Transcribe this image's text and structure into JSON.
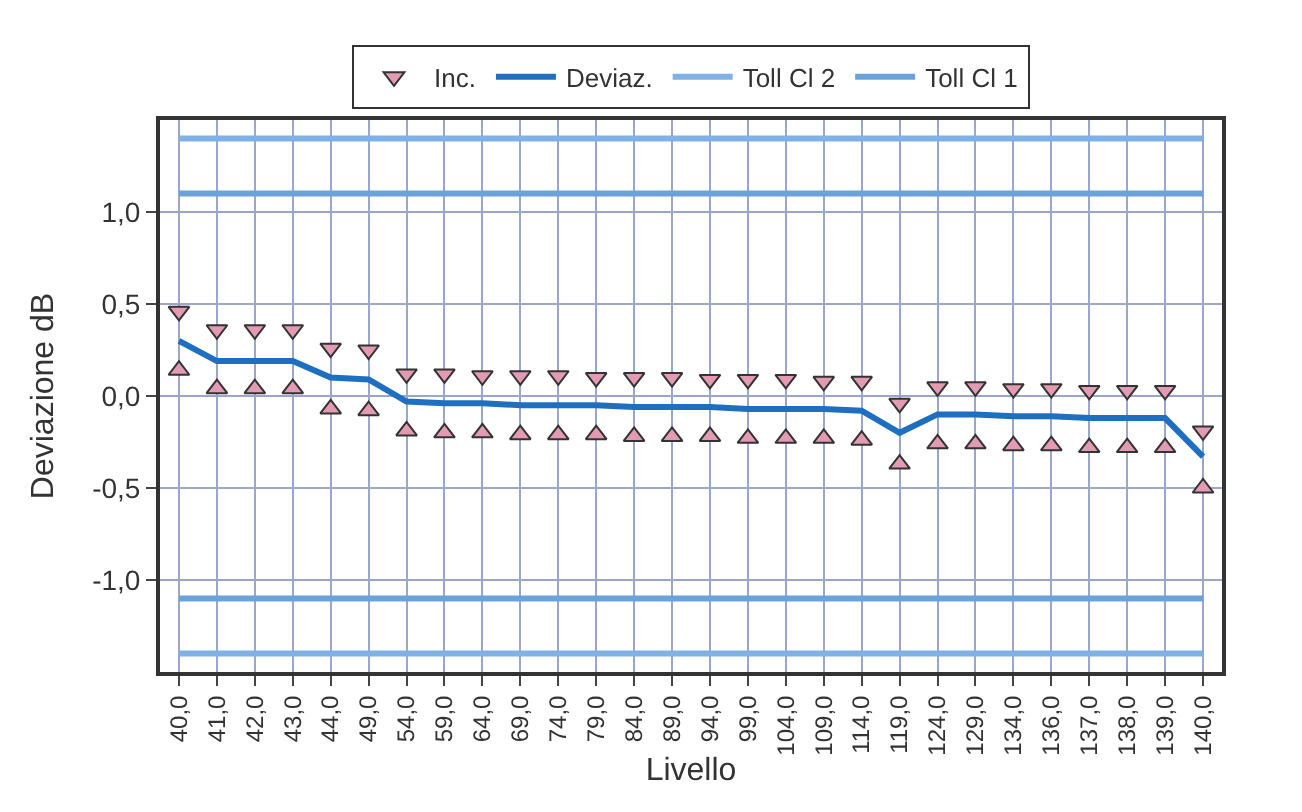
{
  "chart_data": {
    "type": "line",
    "xlabel": "Livello",
    "ylabel": "Deviazione dB",
    "categories": [
      "40,0",
      "41,0",
      "42,0",
      "43,0",
      "44,0",
      "49,0",
      "54,0",
      "59,0",
      "64,0",
      "69,0",
      "74,0",
      "79,0",
      "84,0",
      "89,0",
      "94,0",
      "99,0",
      "104,0",
      "109,0",
      "114,0",
      "119,0",
      "124,0",
      "129,0",
      "134,0",
      "136,0",
      "137,0",
      "138,0",
      "139,0",
      "140,0"
    ],
    "series": [
      {
        "name": "Inc.",
        "type": "scatter",
        "marker": "triangle-down",
        "color": "#e39bb3",
        "values": [
          0.46,
          0.36,
          0.36,
          0.36,
          0.26,
          0.25,
          0.12,
          0.12,
          0.11,
          0.11,
          0.11,
          0.1,
          0.1,
          0.1,
          0.09,
          0.09,
          0.09,
          0.08,
          0.08,
          -0.04,
          0.05,
          0.05,
          0.04,
          0.04,
          0.03,
          0.03,
          0.03,
          -0.19
        ]
      },
      {
        "type": "scatter",
        "marker": "triangle-up",
        "color": "#e39bb3",
        "values": [
          0.14,
          0.04,
          0.04,
          0.04,
          -0.07,
          -0.08,
          -0.19,
          -0.2,
          -0.2,
          -0.21,
          -0.21,
          -0.21,
          -0.22,
          -0.22,
          -0.22,
          -0.23,
          -0.23,
          -0.23,
          -0.24,
          -0.37,
          -0.26,
          -0.26,
          -0.27,
          -0.27,
          -0.28,
          -0.28,
          -0.28,
          -0.5
        ]
      },
      {
        "name": "Deviaz.",
        "color": "#1f6fc0",
        "values": [
          0.3,
          0.19,
          0.19,
          0.19,
          0.1,
          0.09,
          -0.03,
          -0.04,
          -0.04,
          -0.05,
          -0.05,
          -0.05,
          -0.06,
          -0.06,
          -0.06,
          -0.07,
          -0.07,
          -0.07,
          -0.08,
          -0.2,
          -0.1,
          -0.1,
          -0.11,
          -0.11,
          -0.12,
          -0.12,
          -0.12,
          -0.33
        ]
      },
      {
        "name": "Toll Cl 2",
        "color": "#7fb0e6",
        "values": [
          1.4,
          1.4,
          1.4,
          1.4,
          1.4,
          1.4,
          1.4,
          1.4,
          1.4,
          1.4,
          1.4,
          1.4,
          1.4,
          1.4,
          1.4,
          1.4,
          1.4,
          1.4,
          1.4,
          1.4,
          1.4,
          1.4,
          1.4,
          1.4,
          1.4,
          1.4,
          1.4,
          1.4
        ]
      },
      {
        "color": "#7fb0e6",
        "values": [
          -1.4,
          -1.4,
          -1.4,
          -1.4,
          -1.4,
          -1.4,
          -1.4,
          -1.4,
          -1.4,
          -1.4,
          -1.4,
          -1.4,
          -1.4,
          -1.4,
          -1.4,
          -1.4,
          -1.4,
          -1.4,
          -1.4,
          -1.4,
          -1.4,
          -1.4,
          -1.4,
          -1.4,
          -1.4,
          -1.4,
          -1.4,
          -1.4
        ]
      },
      {
        "name": "Toll Cl 1",
        "color": "#6aa2dc",
        "values": [
          1.1,
          1.1,
          1.1,
          1.1,
          1.1,
          1.1,
          1.1,
          1.1,
          1.1,
          1.1,
          1.1,
          1.1,
          1.1,
          1.1,
          1.1,
          1.1,
          1.1,
          1.1,
          1.1,
          1.1,
          1.1,
          1.1,
          1.1,
          1.1,
          1.1,
          1.1,
          1.1,
          1.1
        ]
      },
      {
        "color": "#6aa2dc",
        "values": [
          -1.1,
          -1.1,
          -1.1,
          -1.1,
          -1.1,
          -1.1,
          -1.1,
          -1.1,
          -1.1,
          -1.1,
          -1.1,
          -1.1,
          -1.1,
          -1.1,
          -1.1,
          -1.1,
          -1.1,
          -1.1,
          -1.1,
          -1.1,
          -1.1,
          -1.1,
          -1.1,
          -1.1,
          -1.1,
          -1.1,
          -1.1,
          -1.1
        ]
      }
    ],
    "ylim": [
      -1.5,
      1.5
    ],
    "yticks": [
      {
        "value": -1.0,
        "label": "-1,0"
      },
      {
        "value": -0.5,
        "label": "-0,5"
      },
      {
        "value": 0.0,
        "label": "0,0"
      },
      {
        "value": 0.5,
        "label": "0,5"
      },
      {
        "value": 1.0,
        "label": "1,0"
      }
    ],
    "grid": true,
    "legend": "top",
    "line_style": "solid"
  }
}
